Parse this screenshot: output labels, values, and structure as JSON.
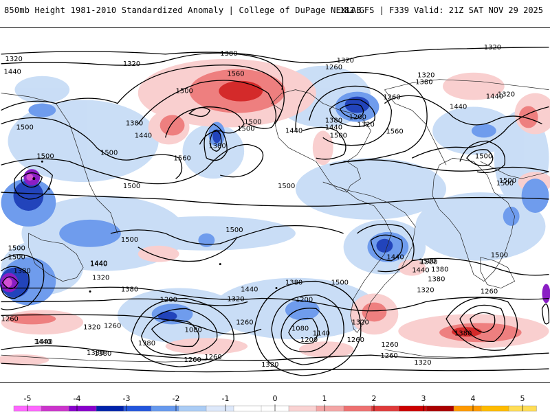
{
  "header": {
    "left": "850mb Height 1981-2010 Standardized Anomaly | College of DuPage NEXLAB",
    "right": "18Z GFS | F339 Valid: 21Z SAT NOV 29 2025"
  },
  "colorbar": {
    "ticks": [
      "-5",
      "-4",
      "-3",
      "-2",
      "-1",
      "0",
      "1",
      "2",
      "3",
      "4",
      "5"
    ],
    "colors": [
      "#ff66ff",
      "#cc33cc",
      "#8800cc",
      "#0022aa",
      "#2255dd",
      "#6699ee",
      "#aaccf5",
      "#dde8fa",
      "#ffffff",
      "#ffffff",
      "#fad2d2",
      "#f4a5a5",
      "#ee7070",
      "#e03a3a",
      "#cc0000",
      "#aa0000",
      "#ff9900",
      "#ffbb00",
      "#ffdd55"
    ]
  },
  "contour_labels": [
    "1320",
    "1320",
    "1380",
    "1320",
    "1440",
    "1560",
    "1500",
    "1500",
    "1440",
    "1380",
    "1560",
    "1380",
    "1500",
    "1500",
    "1500",
    "1500",
    "1440",
    "1380",
    "1440",
    "1500",
    "1320",
    "1260",
    "1320",
    "1380",
    "1260",
    "1200",
    "1320",
    "1560",
    "1440",
    "1440",
    "1320",
    "1500",
    "1500",
    "1500",
    "1500",
    "1500",
    "1500",
    "1440",
    "1500",
    "1500",
    "1500",
    "1440",
    "1500",
    "1380",
    "1440",
    "1320",
    "1380",
    "1440",
    "1320",
    "1380",
    "1500",
    "1380",
    "1260",
    "1200",
    "1320",
    "1440",
    "1380",
    "1260",
    "1080",
    "1260",
    "1200",
    "1080",
    "1140",
    "1200",
    "1260",
    "1320",
    "1260",
    "1260",
    "1260",
    "1380",
    "1440",
    "1260",
    "1380",
    "1320",
    "1320",
    "1320",
    "1260",
    "1380",
    "1380",
    "1440",
    "1500",
    "1500"
  ]
}
